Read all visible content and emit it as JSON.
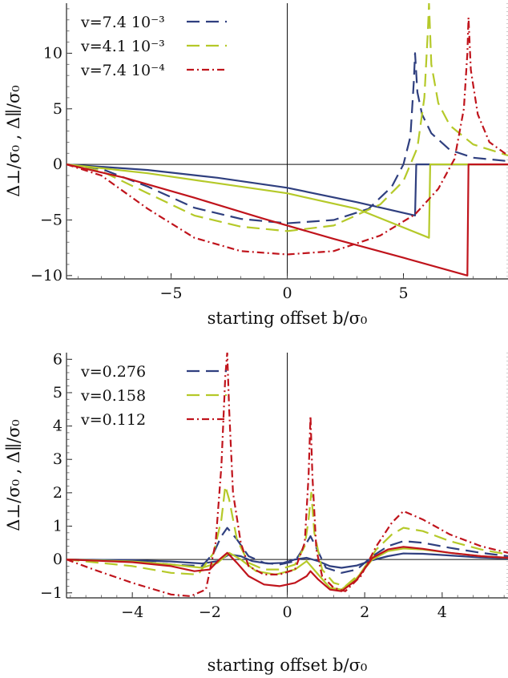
{
  "colors": {
    "blue": "#2f3f7f",
    "green": "#b5c929",
    "red": "#c0141c"
  },
  "chart_data": [
    {
      "type": "line",
      "xlabel": "starting offset b/σ₀",
      "ylabel": "Δ⊥/σ₀ , Δ∥/σ₀",
      "xlim": [
        -9.5,
        9.5
      ],
      "ylim": [
        -10.3,
        14.5
      ],
      "xticks": [
        -5,
        0,
        5
      ],
      "xtick_labels": [
        "−5",
        "0",
        "5"
      ],
      "yticks": [
        -10,
        -5,
        0,
        5,
        10
      ],
      "ytick_labels": [
        "−10",
        "−5",
        "0",
        "5",
        "10"
      ],
      "legend": "top-left",
      "series": [
        {
          "name": "v=7.4 10⁻³",
          "color": "blue",
          "style": "dashed",
          "x": [
            -9.5,
            -8,
            -6,
            -4,
            -2,
            0,
            2,
            3.5,
            4.5,
            5.0,
            5.3,
            5.45,
            5.5,
            5.6,
            5.8,
            6.2,
            7,
            8,
            9.5
          ],
          "y": [
            0,
            -0.4,
            -2.0,
            -3.9,
            -4.9,
            -5.3,
            -5.0,
            -4.0,
            -2.0,
            0,
            2.5,
            7.5,
            10.0,
            6.5,
            4.5,
            2.8,
            1.3,
            0.6,
            0.3
          ]
        },
        {
          "name": "",
          "color": "blue",
          "style": "solid",
          "x": [
            -9.5,
            -6,
            -3,
            0,
            3,
            5.5,
            5.55,
            9.5
          ],
          "y": [
            0,
            -0.5,
            -1.2,
            -2.1,
            -3.4,
            -4.6,
            0,
            0
          ]
        },
        {
          "name": "v=4.1 10⁻³",
          "color": "green",
          "style": "dashed",
          "x": [
            -9.5,
            -8,
            -6,
            -4,
            -2,
            0,
            2,
            4,
            5,
            5.6,
            5.9,
            6.05,
            6.1,
            6.2,
            6.5,
            7,
            8,
            9.5
          ],
          "y": [
            0,
            -0.6,
            -2.6,
            -4.6,
            -5.6,
            -6.0,
            -5.5,
            -3.6,
            -1.5,
            1.5,
            6.0,
            12.0,
            14.5,
            9.0,
            5.5,
            3.5,
            1.8,
            0.8
          ]
        },
        {
          "name": "",
          "color": "green",
          "style": "solid",
          "x": [
            -9.5,
            -6,
            -3,
            0,
            3,
            6.1,
            6.15,
            9.5
          ],
          "y": [
            0,
            -0.8,
            -1.7,
            -2.6,
            -4.0,
            -6.6,
            0,
            0
          ]
        },
        {
          "name": "v=7.4 10⁻⁴",
          "color": "red",
          "style": "dashdot",
          "x": [
            -9.5,
            -8,
            -6,
            -4,
            -2,
            0,
            2,
            4,
            5.5,
            6.5,
            7.2,
            7.6,
            7.75,
            7.8,
            7.9,
            8.2,
            8.7,
            9.5
          ],
          "y": [
            0,
            -1.0,
            -4.0,
            -6.6,
            -7.8,
            -8.1,
            -7.8,
            -6.4,
            -4.5,
            -2.2,
            0.5,
            5.0,
            10.0,
            13.2,
            8.5,
            4.5,
            2.0,
            0.8
          ]
        },
        {
          "name": "",
          "color": "red",
          "style": "solid",
          "x": [
            -9.5,
            -7,
            -4,
            -1,
            2,
            5,
            7.75,
            7.8,
            9.5
          ],
          "y": [
            0,
            -1.2,
            -3.0,
            -4.9,
            -6.7,
            -8.4,
            -10.0,
            0,
            0
          ]
        }
      ]
    },
    {
      "type": "line",
      "xlabel": "starting offset b/σ₀",
      "ylabel": "Δ⊥/σ₀ , Δ∥/σ₀",
      "xlim": [
        -5.7,
        5.7
      ],
      "ylim": [
        -1.15,
        6.2
      ],
      "xticks": [
        -4,
        -2,
        0,
        2,
        4
      ],
      "xtick_labels": [
        "−4",
        "−2",
        "0",
        "2",
        "4"
      ],
      "yticks": [
        -1,
        0,
        1,
        2,
        3,
        4,
        5,
        6
      ],
      "ytick_labels": [
        "−1",
        "0",
        "1",
        "2",
        "3",
        "4",
        "5",
        "6"
      ],
      "legend": "top-left",
      "series": [
        {
          "name": "v=0.276",
          "color": "blue",
          "style": "dashed",
          "x": [
            -5.7,
            -4,
            -3,
            -2.2,
            -1.9,
            -1.7,
            -1.55,
            -1.3,
            -1.0,
            -0.6,
            -0.2,
            0.2,
            0.45,
            0.6,
            0.75,
            1.0,
            1.4,
            1.8,
            2.2,
            2.6,
            3.0,
            3.5,
            4.2,
            5.0,
            5.7
          ],
          "y": [
            0,
            -0.04,
            -0.15,
            -0.2,
            0.2,
            0.7,
            0.95,
            0.6,
            0.1,
            -0.1,
            -0.15,
            -0.05,
            0.4,
            0.7,
            0.35,
            -0.25,
            -0.4,
            -0.3,
            0.1,
            0.4,
            0.55,
            0.5,
            0.35,
            0.2,
            0.1
          ]
        },
        {
          "name": "",
          "color": "blue",
          "style": "solid",
          "x": [
            -5.7,
            -4,
            -3,
            -2.2,
            -1.8,
            -1.5,
            -1.2,
            -0.9,
            -0.5,
            -0.1,
            0.2,
            0.5,
            0.8,
            1.1,
            1.4,
            1.8,
            2.2,
            2.6,
            3.0,
            3.5,
            4.2,
            5.0,
            5.7
          ],
          "y": [
            0,
            -0.02,
            -0.06,
            -0.12,
            -0.05,
            0.15,
            0.1,
            -0.05,
            -0.12,
            -0.1,
            0,
            0.05,
            -0.05,
            -0.2,
            -0.25,
            -0.18,
            -0.02,
            0.1,
            0.18,
            0.17,
            0.12,
            0.06,
            0.03
          ]
        },
        {
          "name": "v=0.158",
          "color": "green",
          "style": "dashed",
          "x": [
            -5.7,
            -4,
            -3,
            -2.3,
            -1.9,
            -1.7,
            -1.6,
            -1.5,
            -1.3,
            -1.0,
            -0.6,
            -0.2,
            0.2,
            0.45,
            0.55,
            0.62,
            0.7,
            0.9,
            1.2,
            1.5,
            1.9,
            2.3,
            2.7,
            3.0,
            3.5,
            4.2,
            5.0,
            5.7
          ],
          "y": [
            0,
            -0.2,
            -0.4,
            -0.45,
            0.2,
            1.2,
            2.2,
            1.8,
            0.6,
            -0.1,
            -0.3,
            -0.3,
            -0.15,
            0.4,
            1.2,
            2.0,
            0.8,
            -0.3,
            -0.7,
            -0.8,
            -0.4,
            0.3,
            0.75,
            0.95,
            0.85,
            0.55,
            0.3,
            0.15
          ]
        },
        {
          "name": "",
          "color": "green",
          "style": "solid",
          "x": [
            -5.7,
            -4,
            -3,
            -2.2,
            -1.8,
            -1.5,
            -1.2,
            -0.8,
            -0.3,
            0.2,
            0.5,
            0.8,
            1.1,
            1.4,
            1.8,
            2.2,
            2.6,
            3.0,
            3.5,
            4.2,
            5.0,
            5.7
          ],
          "y": [
            0,
            -0.06,
            -0.15,
            -0.25,
            -0.1,
            0.2,
            0,
            -0.35,
            -0.45,
            -0.3,
            -0.05,
            -0.45,
            -0.85,
            -0.9,
            -0.55,
            0,
            0.25,
            0.33,
            0.3,
            0.2,
            0.1,
            0.05
          ]
        },
        {
          "name": "v=0.112",
          "color": "red",
          "style": "dashdot",
          "x": [
            -5.7,
            -5,
            -4,
            -3,
            -2.5,
            -2.1,
            -1.85,
            -1.7,
            -1.6,
            -1.55,
            -1.5,
            -1.4,
            -1.2,
            -1.0,
            -0.6,
            -0.2,
            0.2,
            0.45,
            0.55,
            0.6,
            0.65,
            0.75,
            0.9,
            1.2,
            1.5,
            1.9,
            2.3,
            2.7,
            3.0,
            3.5,
            4.2,
            5.0,
            5.7
          ],
          "y": [
            0,
            -0.3,
            -0.7,
            -1.05,
            -1.1,
            -0.9,
            0.5,
            2.8,
            5.5,
            6.2,
            4.5,
            2.0,
            0.5,
            -0.2,
            -0.45,
            -0.45,
            -0.3,
            0.5,
            2.5,
            4.3,
            2.5,
            0.3,
            -0.5,
            -0.85,
            -0.95,
            -0.5,
            0.4,
            1.1,
            1.45,
            1.2,
            0.75,
            0.4,
            0.2
          ]
        },
        {
          "name": "",
          "color": "red",
          "style": "solid",
          "x": [
            -5.7,
            -4,
            -3,
            -2.4,
            -2.0,
            -1.75,
            -1.55,
            -1.3,
            -1.0,
            -0.6,
            -0.2,
            0.2,
            0.5,
            0.6,
            0.8,
            1.1,
            1.4,
            1.8,
            2.2,
            2.6,
            3.0,
            3.5,
            4.2,
            5.0,
            5.7
          ],
          "y": [
            0,
            -0.08,
            -0.2,
            -0.35,
            -0.3,
            0,
            0.2,
            -0.1,
            -0.5,
            -0.75,
            -0.8,
            -0.7,
            -0.5,
            -0.35,
            -0.6,
            -0.9,
            -0.95,
            -0.6,
            0.05,
            0.3,
            0.38,
            0.32,
            0.2,
            0.1,
            0.05
          ]
        }
      ]
    }
  ]
}
